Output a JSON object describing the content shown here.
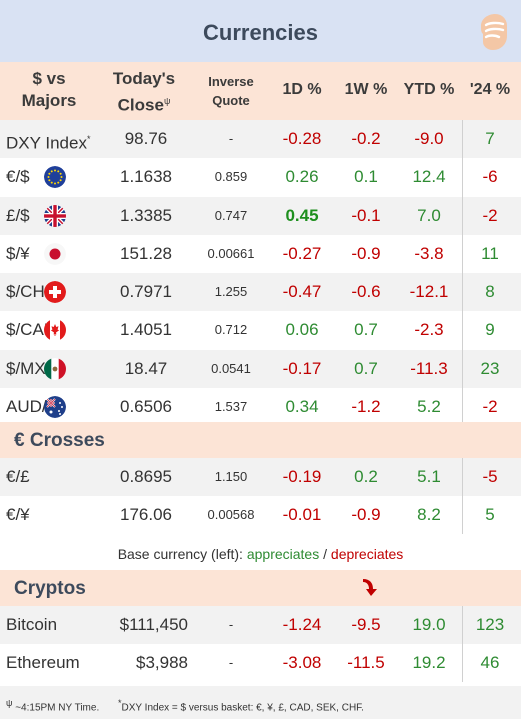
{
  "title": "Currencies",
  "logo_icon": "fist-logo-icon",
  "header": {
    "col1_line1": "$ vs",
    "col1_line2": "Majors",
    "col2_line1": "Today's",
    "col2_line2": "Close",
    "col2_sup": "ψ",
    "col3_line1": "Inverse",
    "col3_line2": "Quote",
    "col4": "1D %",
    "col5": "1W %",
    "col6": "YTD %",
    "col7": "'24 %"
  },
  "majors": [
    {
      "name": "DXY Index",
      "sup": "*",
      "close": "98.76",
      "inverse": "-",
      "d1": "-0.28",
      "w1": "-0.2",
      "ytd": "-9.0",
      "y24": "7",
      "flag": ""
    },
    {
      "name": "€/$",
      "close": "1.1638",
      "inverse": "0.859",
      "d1": "0.26",
      "w1": "0.1",
      "ytd": "12.4",
      "y24": "-6",
      "flag": "eu-flag-icon"
    },
    {
      "name": "£/$",
      "close": "1.3385",
      "inverse": "0.747",
      "d1": "0.45",
      "w1": "-0.1",
      "ytd": "7.0",
      "y24": "-2",
      "flag": "uk-flag-icon"
    },
    {
      "name": "$/¥",
      "close": "151.28",
      "inverse": "0.00661",
      "d1": "-0.27",
      "w1": "-0.9",
      "ytd": "-3.8",
      "y24": "11",
      "flag": "japan-flag-icon"
    },
    {
      "name": "$/CHF",
      "close": "0.7971",
      "inverse": "1.255",
      "d1": "-0.47",
      "w1": "-0.6",
      "ytd": "-12.1",
      "y24": "8",
      "flag": "swiss-flag-icon"
    },
    {
      "name": "$/CAD",
      "close": "1.4051",
      "inverse": "0.712",
      "d1": "0.06",
      "w1": "0.7",
      "ytd": "-2.3",
      "y24": "9",
      "flag": "canada-flag-icon"
    },
    {
      "name": "$/MXN",
      "close": "18.47",
      "inverse": "0.0541",
      "d1": "-0.17",
      "w1": "0.7",
      "ytd": "-11.3",
      "y24": "23",
      "flag": "mexico-flag-icon"
    },
    {
      "name": "AUD/$",
      "close": "0.6506",
      "inverse": "1.537",
      "d1": "0.34",
      "w1": "-1.2",
      "ytd": "5.2",
      "y24": "-2",
      "flag": "australia-flag-icon"
    }
  ],
  "crosses_title": "€ Crosses",
  "crosses": [
    {
      "name": "€/£",
      "close": "0.8695",
      "inverse": "1.150",
      "d1": "-0.19",
      "w1": "0.2",
      "ytd": "5.1",
      "y24": "-5"
    },
    {
      "name": "€/¥",
      "close": "176.06",
      "inverse": "0.00568",
      "d1": "-0.01",
      "w1": "-0.9",
      "ytd": "8.2",
      "y24": "5"
    }
  ],
  "note": {
    "prefix": "Base currency (left): ",
    "appreciates": "appreciates",
    "sep": " / ",
    "depreciates": "depreciates"
  },
  "cryptos_title": "Cryptos",
  "cryptos_arrow_icon": "red-down-arrow-icon",
  "cryptos": [
    {
      "name": "Bitcoin",
      "close": "$111,450",
      "inverse": "-",
      "d1": "-1.24",
      "w1": "-9.5",
      "ytd": "19.0",
      "y24": "123"
    },
    {
      "name": "Ethereum",
      "close": "$3,988",
      "inverse": "-",
      "d1": "-3.08",
      "w1": "-11.5",
      "ytd": "19.2",
      "y24": "46"
    }
  ],
  "footer": {
    "sup1": "ψ",
    "text1": " ~4:15PM NY Time.",
    "sup2": "*",
    "text2": "DXY Index = $ versus basket: €, ¥, £, CAD, SEK, CHF."
  },
  "colors": {
    "positive": "#2e8b32",
    "negative": "#c00000",
    "header_bg": "#fce4d6",
    "title_bg": "#d9e2f3"
  }
}
